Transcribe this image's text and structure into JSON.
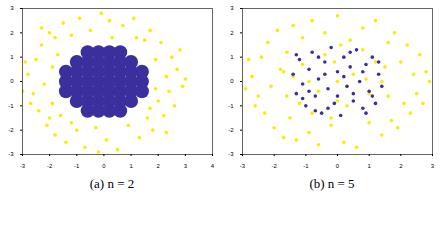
{
  "chart_data": [
    {
      "type": "scatter",
      "caption": "(a) n = 2",
      "xlim": [
        -3,
        4
      ],
      "xticks": [
        -3,
        -2,
        -1,
        0,
        1,
        2,
        3,
        4
      ],
      "ylim": [
        -3,
        3
      ],
      "yticks": [
        -3,
        -2,
        -1,
        0,
        1,
        2,
        3
      ],
      "series": [
        {
          "color": "#f2f000",
          "marker": "small",
          "values": [
            [
              -2.8,
              0.3
            ],
            [
              -2.6,
              -0.5
            ],
            [
              -2.5,
              0.9
            ],
            [
              -2.4,
              -1.2
            ],
            [
              -2.3,
              1.5
            ],
            [
              -2.2,
              -0.1
            ],
            [
              -2.1,
              -1.8
            ],
            [
              -2.0,
              2.0
            ],
            [
              -1.9,
              0.6
            ],
            [
              -1.8,
              -2.2
            ],
            [
              -1.7,
              1.1
            ],
            [
              -1.6,
              -1.4
            ],
            [
              -1.5,
              2.4
            ],
            [
              -1.4,
              -2.5
            ],
            [
              -1.2,
              1.9
            ],
            [
              -1.0,
              -2.0
            ],
            [
              -0.9,
              2.6
            ],
            [
              -0.7,
              -2.7
            ],
            [
              -0.5,
              2.1
            ],
            [
              -0.3,
              -1.9
            ],
            [
              -0.1,
              2.8
            ],
            [
              0.1,
              -2.4
            ],
            [
              0.3,
              1.8
            ],
            [
              0.5,
              -2.8
            ],
            [
              0.7,
              2.3
            ],
            [
              0.9,
              -1.8
            ],
            [
              1.1,
              2.6
            ],
            [
              1.3,
              -2.3
            ],
            [
              1.5,
              1.7
            ],
            [
              1.6,
              -1.5
            ],
            [
              1.7,
              2.1
            ],
            [
              1.8,
              -2.0
            ],
            [
              1.9,
              0.9
            ],
            [
              2.0,
              -0.8
            ],
            [
              2.1,
              1.6
            ],
            [
              2.2,
              -1.4
            ],
            [
              2.3,
              0.2
            ],
            [
              2.4,
              -0.4
            ],
            [
              2.5,
              1.0
            ],
            [
              2.6,
              -1.0
            ],
            [
              2.7,
              0.5
            ],
            [
              2.9,
              -0.2
            ],
            [
              3.0,
              0.1
            ],
            [
              2.8,
              1.3
            ],
            [
              -3.0,
              -0.4
            ],
            [
              -2.7,
              -0.9
            ],
            [
              -2.9,
              0.8
            ],
            [
              -1.9,
              -0.9
            ],
            [
              1.9,
              -0.3
            ],
            [
              -0.2,
              -2.9
            ],
            [
              0.2,
              2.5
            ],
            [
              -2.3,
              2.2
            ],
            [
              2.3,
              -2.1
            ],
            [
              -1.2,
              -1.7
            ],
            [
              1.2,
              1.8
            ],
            [
              -1.8,
              1.8
            ],
            [
              1.7,
              -1.1
            ],
            [
              -2.0,
              -1.5
            ]
          ]
        },
        {
          "color": "#3b2f9e",
          "marker": "large",
          "values": [
            [
              -0.6,
              -1.2
            ],
            [
              -0.2,
              -1.2
            ],
            [
              0.2,
              -1.2
            ],
            [
              0.6,
              -1.2
            ],
            [
              -1.0,
              -0.8
            ],
            [
              -0.6,
              -0.8
            ],
            [
              -0.2,
              -0.8
            ],
            [
              0.2,
              -0.8
            ],
            [
              0.6,
              -0.8
            ],
            [
              1.0,
              -0.8
            ],
            [
              -1.4,
              -0.4
            ],
            [
              -1.0,
              -0.4
            ],
            [
              -0.6,
              -0.4
            ],
            [
              -0.2,
              -0.4
            ],
            [
              0.2,
              -0.4
            ],
            [
              0.6,
              -0.4
            ],
            [
              1.0,
              -0.4
            ],
            [
              1.4,
              -0.4
            ],
            [
              -1.4,
              0
            ],
            [
              -1.0,
              0
            ],
            [
              -0.6,
              0
            ],
            [
              -0.2,
              0
            ],
            [
              0.2,
              0
            ],
            [
              0.6,
              0
            ],
            [
              1.0,
              0
            ],
            [
              1.4,
              0
            ],
            [
              -1.4,
              0.4
            ],
            [
              -1.0,
              0.4
            ],
            [
              -0.6,
              0.4
            ],
            [
              -0.2,
              0.4
            ],
            [
              0.2,
              0.4
            ],
            [
              0.6,
              0.4
            ],
            [
              1.0,
              0.4
            ],
            [
              1.4,
              0.4
            ],
            [
              -1.0,
              0.8
            ],
            [
              -0.6,
              0.8
            ],
            [
              -0.2,
              0.8
            ],
            [
              0.2,
              0.8
            ],
            [
              0.6,
              0.8
            ],
            [
              1.0,
              0.8
            ],
            [
              -0.6,
              1.2
            ],
            [
              -0.2,
              1.2
            ],
            [
              0.2,
              1.2
            ],
            [
              0.6,
              1.2
            ]
          ]
        }
      ]
    },
    {
      "type": "scatter",
      "caption": "(b) n = 5",
      "xlim": [
        -3,
        3
      ],
      "xticks": [
        -3,
        -2,
        -1,
        0,
        1,
        2,
        3
      ],
      "ylim": [
        -3,
        3
      ],
      "yticks": [
        -3,
        -2,
        -1,
        0,
        1,
        2,
        3
      ],
      "series": [
        {
          "color": "#f2f000",
          "marker": "small",
          "values": [
            [
              -2.7,
              0.2
            ],
            [
              -2.5,
              -0.6
            ],
            [
              -2.4,
              1.0
            ],
            [
              -2.3,
              -1.3
            ],
            [
              -2.2,
              1.6
            ],
            [
              -2.1,
              -0.2
            ],
            [
              -2.0,
              -1.9
            ],
            [
              -1.9,
              2.1
            ],
            [
              -1.8,
              0.5
            ],
            [
              -1.7,
              -2.3
            ],
            [
              -1.6,
              1.2
            ],
            [
              -1.5,
              -1.5
            ],
            [
              -1.4,
              2.3
            ],
            [
              -1.3,
              -2.4
            ],
            [
              -1.1,
              1.8
            ],
            [
              -0.9,
              -2.1
            ],
            [
              -0.8,
              2.5
            ],
            [
              -0.6,
              -2.6
            ],
            [
              -0.4,
              2.0
            ],
            [
              -0.2,
              -1.8
            ],
            [
              0.0,
              2.7
            ],
            [
              0.2,
              -2.5
            ],
            [
              0.4,
              1.7
            ],
            [
              0.6,
              -2.7
            ],
            [
              0.8,
              2.2
            ],
            [
              1.0,
              -1.7
            ],
            [
              1.2,
              2.5
            ],
            [
              1.4,
              -2.2
            ],
            [
              1.6,
              1.6
            ],
            [
              1.7,
              -1.6
            ],
            [
              1.8,
              2.0
            ],
            [
              1.9,
              -1.9
            ],
            [
              2.0,
              0.8
            ],
            [
              2.1,
              -0.9
            ],
            [
              2.2,
              1.5
            ],
            [
              2.3,
              -1.3
            ],
            [
              2.4,
              0.3
            ],
            [
              2.5,
              -0.5
            ],
            [
              2.6,
              1.1
            ],
            [
              2.7,
              -0.9
            ],
            [
              2.8,
              0.4
            ],
            [
              -2.9,
              -0.3
            ],
            [
              2.9,
              0.0
            ],
            [
              -2.6,
              -1.0
            ],
            [
              -2.8,
              0.9
            ],
            [
              0.0,
              0.0
            ],
            [
              0.5,
              0.3
            ],
            [
              -0.6,
              -0.4
            ],
            [
              1.0,
              -0.5
            ],
            [
              -1.1,
              0.7
            ],
            [
              0.3,
              -1.0
            ],
            [
              -0.4,
              1.1
            ],
            [
              1.2,
              0.8
            ],
            [
              -1.2,
              -0.9
            ],
            [
              0.8,
              1.3
            ],
            [
              -0.8,
              -1.3
            ],
            [
              1.4,
              0.0
            ],
            [
              -1.4,
              0.2
            ],
            [
              0.1,
              1.5
            ],
            [
              -0.2,
              -1.5
            ],
            [
              -0.9,
              0.0
            ],
            [
              0.9,
              0.1
            ],
            [
              0.0,
              -0.8
            ],
            [
              -0.1,
              0.8
            ],
            [
              1.6,
              -0.6
            ],
            [
              -1.6,
              -0.6
            ],
            [
              1.5,
              0.6
            ],
            [
              -1.7,
              0.4
            ]
          ]
        },
        {
          "color": "#3b2f9e",
          "marker": "small",
          "values": [
            [
              -1.4,
              0.3
            ],
            [
              -1.3,
              -0.5
            ],
            [
              -1.2,
              0.9
            ],
            [
              -1.1,
              -0.1
            ],
            [
              -1.0,
              -1.0
            ],
            [
              -0.9,
              0.5
            ],
            [
              -0.8,
              1.2
            ],
            [
              -0.7,
              -0.6
            ],
            [
              -0.6,
              0.1
            ],
            [
              -0.5,
              -1.3
            ],
            [
              -0.4,
              0.8
            ],
            [
              -0.3,
              -0.3
            ],
            [
              -0.2,
              1.4
            ],
            [
              -0.1,
              -0.9
            ],
            [
              0.0,
              0.4
            ],
            [
              0.1,
              -1.4
            ],
            [
              0.2,
              1.0
            ],
            [
              0.3,
              -0.2
            ],
            [
              0.4,
              0.6
            ],
            [
              0.5,
              -0.8
            ],
            [
              0.6,
              1.3
            ],
            [
              0.7,
              0.0
            ],
            [
              0.8,
              -1.1
            ],
            [
              0.9,
              0.7
            ],
            [
              1.0,
              -0.4
            ],
            [
              1.1,
              1.0
            ],
            [
              1.2,
              -0.9
            ],
            [
              1.3,
              0.3
            ],
            [
              1.4,
              -0.2
            ],
            [
              -1.3,
              1.1
            ],
            [
              -0.9,
              -0.4
            ],
            [
              -0.6,
              1.0
            ],
            [
              -0.3,
              -1.1
            ],
            [
              0.2,
              0.2
            ],
            [
              0.5,
              -0.5
            ],
            [
              0.8,
              0.4
            ],
            [
              1.1,
              -0.6
            ],
            [
              -1.1,
              -0.7
            ],
            [
              -0.4,
              0.3
            ],
            [
              0.0,
              -0.6
            ],
            [
              0.4,
              1.2
            ],
            [
              0.9,
              -1.3
            ],
            [
              -0.7,
              -1.2
            ],
            [
              1.3,
              0.8
            ]
          ]
        }
      ]
    }
  ]
}
